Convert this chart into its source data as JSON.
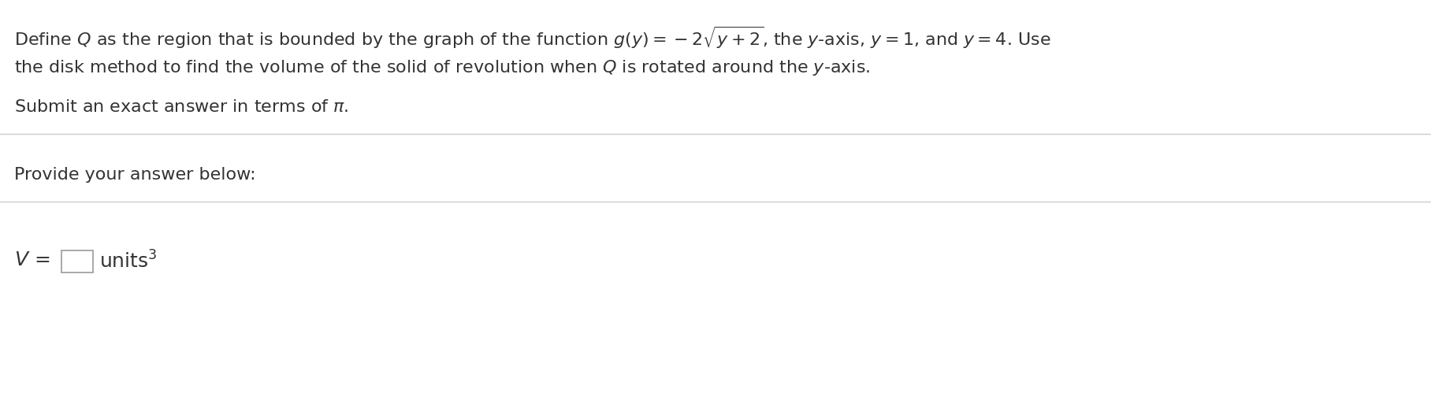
{
  "line1": "Define Q as the region that is bounded by the graph of the function g(y) = −2√ y + 2 , the y-axis, y = 1, and y = 4. Use",
  "line2": "the disk method to find the volume of the solid of revolution when Q is rotated around the y-axis.",
  "line3": "Submit an exact answer in terms of π.",
  "line4": "Provide your answer below:",
  "line5_prefix": "V = ",
  "line5_suffix": " units³",
  "separator_color": "#cccccc",
  "text_color": "#333333",
  "background_color": "#ffffff",
  "font_size_main": 16,
  "font_size_label": 16
}
